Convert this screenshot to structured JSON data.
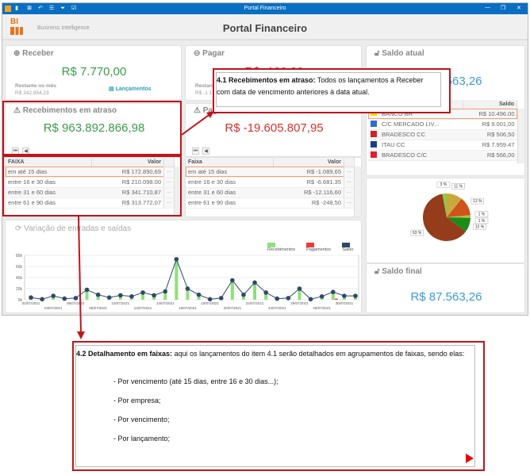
{
  "window": {
    "title": "Portal Financeiro",
    "minimize": "—",
    "restore": "❐",
    "close": "✕"
  },
  "header": {
    "logo": "BI",
    "subtitle": "Business Intelligence",
    "title": "Portal Financeiro"
  },
  "receber": {
    "title": "Receber",
    "value": "R$ 7.770,00",
    "remaining_label": "Restante no mês",
    "remaining_value": "R$ 342.954,23",
    "link": "Lançamentos"
  },
  "pagar": {
    "title": "Pagar",
    "value": "R$ -100,00",
    "remaining_label": "Restante no mês",
    "remaining_value": "R$ -1.1"
  },
  "rec_atraso": {
    "title": "Recebimentos em atraso",
    "value": "R$ 963.892.866,98",
    "col1": "FAIXA",
    "col2": "Valor",
    "rows": [
      {
        "faixa": "em até 15 dias",
        "valor": "R$ 172.890,69"
      },
      {
        "faixa": "entre 16 e 30 dias",
        "valor": "R$ 210.098.00"
      },
      {
        "faixa": "entre 31 e 60 dias",
        "valor": "R$ 341.710,87"
      },
      {
        "faixa": "entre 61 e 90 dias",
        "valor": "R$ 313.772,07"
      }
    ]
  },
  "pag_atraso": {
    "title": "Pagamentos em atraso",
    "value": "R$ -19.605.807,95",
    "col1": "Faixa",
    "col2": "Valor",
    "rows": [
      {
        "faixa": "em até 15 dias",
        "valor": "R$ -1.089,65"
      },
      {
        "faixa": "entre 16 e 30 dias",
        "valor": "R$ -6.681.35"
      },
      {
        "faixa": "entre 31 e 60 dias",
        "valor": "R$ -12.116,60"
      },
      {
        "faixa": "entre 61 e 90 dias",
        "valor": "R$ -248,50"
      }
    ]
  },
  "saldo_atual": {
    "title": "Saldo atual",
    "value": "R$ 87.563,26",
    "col": "Saldo",
    "rows": [
      {
        "name": "BANCO BR",
        "valor": "R$ 10.496.00",
        "color": "#f7d700"
      },
      {
        "name": "C/C MERCADO LIV...",
        "valor": "R$ 9.001,00",
        "color": "#2a6fd0"
      },
      {
        "name": "BRADESCO CC",
        "valor": "R$ 506,50",
        "color": "#d0202c"
      },
      {
        "name": "ITAU CC",
        "valor": "R$ 7.959.47",
        "color": "#1a3e8a"
      },
      {
        "name": "BRADESCO C/C",
        "valor": "R$ 566,00",
        "color": "#e0202c"
      }
    ]
  },
  "saldo_final": {
    "title": "Saldo final",
    "value": "R$ 87.563,26"
  },
  "chart_data": {
    "type": "bar+line",
    "title": "Variação de entradas e saídas",
    "legend": [
      "Recebimentos",
      "Pagamentos",
      "Saldo"
    ],
    "colors": [
      "#8ee07a",
      "#f03a3a",
      "#2e4a6a"
    ],
    "yticks": [
      "0k",
      "20k",
      "40k",
      "60k",
      "80k"
    ],
    "ylim": [
      0,
      80
    ],
    "xlabels": [
      "02/07/2021",
      "04/07/2021",
      "06/07/2021",
      "08/07/2021",
      "10/07/2021",
      "12/07/2021",
      "14/07/2021",
      "16/07/2021",
      "18/07/2021",
      "20/07/2021",
      "22/07/2021",
      "24/07/2021",
      "26/07/2021",
      "28/07/2021",
      "30/07/2021"
    ],
    "recebimentos": [
      3,
      0,
      6,
      1,
      2,
      16,
      8,
      2,
      7,
      5,
      12,
      7,
      14,
      72,
      19,
      8,
      0,
      2,
      34,
      8,
      30,
      12,
      1,
      2,
      19,
      0,
      5,
      16,
      6,
      7
    ],
    "pagamentos": [
      0,
      0,
      0,
      0,
      0,
      0,
      0,
      0,
      0,
      0,
      0,
      0,
      0,
      0,
      0,
      0,
      0,
      0,
      0,
      0,
      0,
      0,
      0,
      0,
      0,
      0,
      0,
      2,
      0,
      0
    ],
    "saldo": [
      4,
      1,
      7,
      2,
      3,
      18,
      9,
      4,
      8,
      6,
      13,
      8,
      15,
      73,
      20,
      9,
      1,
      3,
      35,
      9,
      31,
      13,
      2,
      3,
      20,
      1,
      6,
      14,
      7,
      7
    ]
  },
  "pie": {
    "labels": [
      "11 %",
      "13 %",
      "1 %",
      "1 %",
      "10 %",
      "63 %",
      "3 %"
    ],
    "values": [
      11,
      13,
      1,
      1,
      10,
      63,
      3
    ],
    "colors": [
      "#c8aa3c",
      "#d0531a",
      "#c8b040",
      "#9ac040",
      "#1a8c1a",
      "#953c1a",
      "#8cc84a"
    ]
  },
  "annotation1": {
    "heading": "4.1 Recebimentos em atraso:",
    "text": " Todos os lançamentos a Receber com data de vencimento anteriores à data atual."
  },
  "annotation2": {
    "heading": "4.2 Detalhamento em faixas:",
    "text": "  aqui os lançamentos do item 4.1 serão detalhados em agrupamentos de faixas, sendo elas:",
    "items": [
      "- Por vencimento (até 15 dias, entre 16 e 30 dias...);",
      "- Por empresa;",
      "- Por vencimento;",
      "- Por lançamento;"
    ]
  }
}
